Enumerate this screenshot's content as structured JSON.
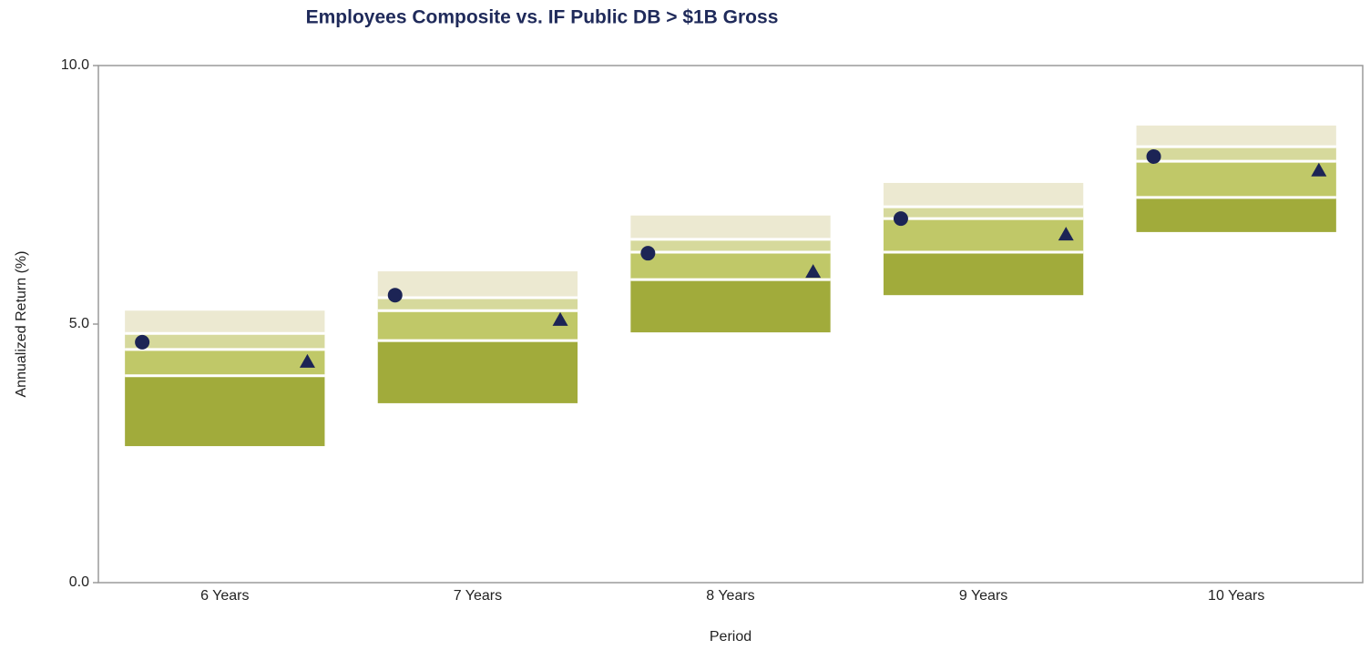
{
  "chart_data": {
    "type": "floating_range",
    "title": "Employees Composite vs. IF Public DB > $1B Gross",
    "x_label": "Period",
    "y_label": "Annualized Return (%)",
    "categories": [
      "6 Years",
      "7 Years",
      "8 Years",
      "9 Years",
      "10 Years"
    ],
    "ylim": [
      0,
      10
    ],
    "yticks": [
      {
        "value": 0,
        "label": "0.0"
      },
      {
        "value": 5,
        "label": "5.0"
      },
      {
        "value": 10,
        "label": "10.0"
      }
    ],
    "range_series": [
      {
        "values": [
          5.26,
          6.02,
          7.1,
          7.73,
          8.84
        ]
      },
      {
        "values": [
          4.82,
          5.51,
          6.64,
          7.27,
          8.43
        ]
      },
      {
        "values": [
          4.51,
          5.26,
          6.39,
          7.04,
          8.15
        ]
      },
      {
        "values": [
          4.0,
          4.68,
          5.86,
          6.39,
          7.45
        ]
      },
      {
        "values": [
          2.64,
          3.47,
          4.84,
          5.56,
          6.78
        ]
      }
    ],
    "band_colors": [
      "#ece9d1",
      "#d6d99c",
      "#c0c868",
      "#a1ab3b"
    ],
    "markers": [
      {
        "shape": "circle",
        "color": "#1c2455",
        "values": [
          4.65,
          5.56,
          6.37,
          7.04,
          8.24
        ]
      },
      {
        "shape": "triangle",
        "color": "#1c2455",
        "values": [
          4.28,
          5.09,
          6.02,
          6.74,
          7.98
        ]
      }
    ]
  }
}
